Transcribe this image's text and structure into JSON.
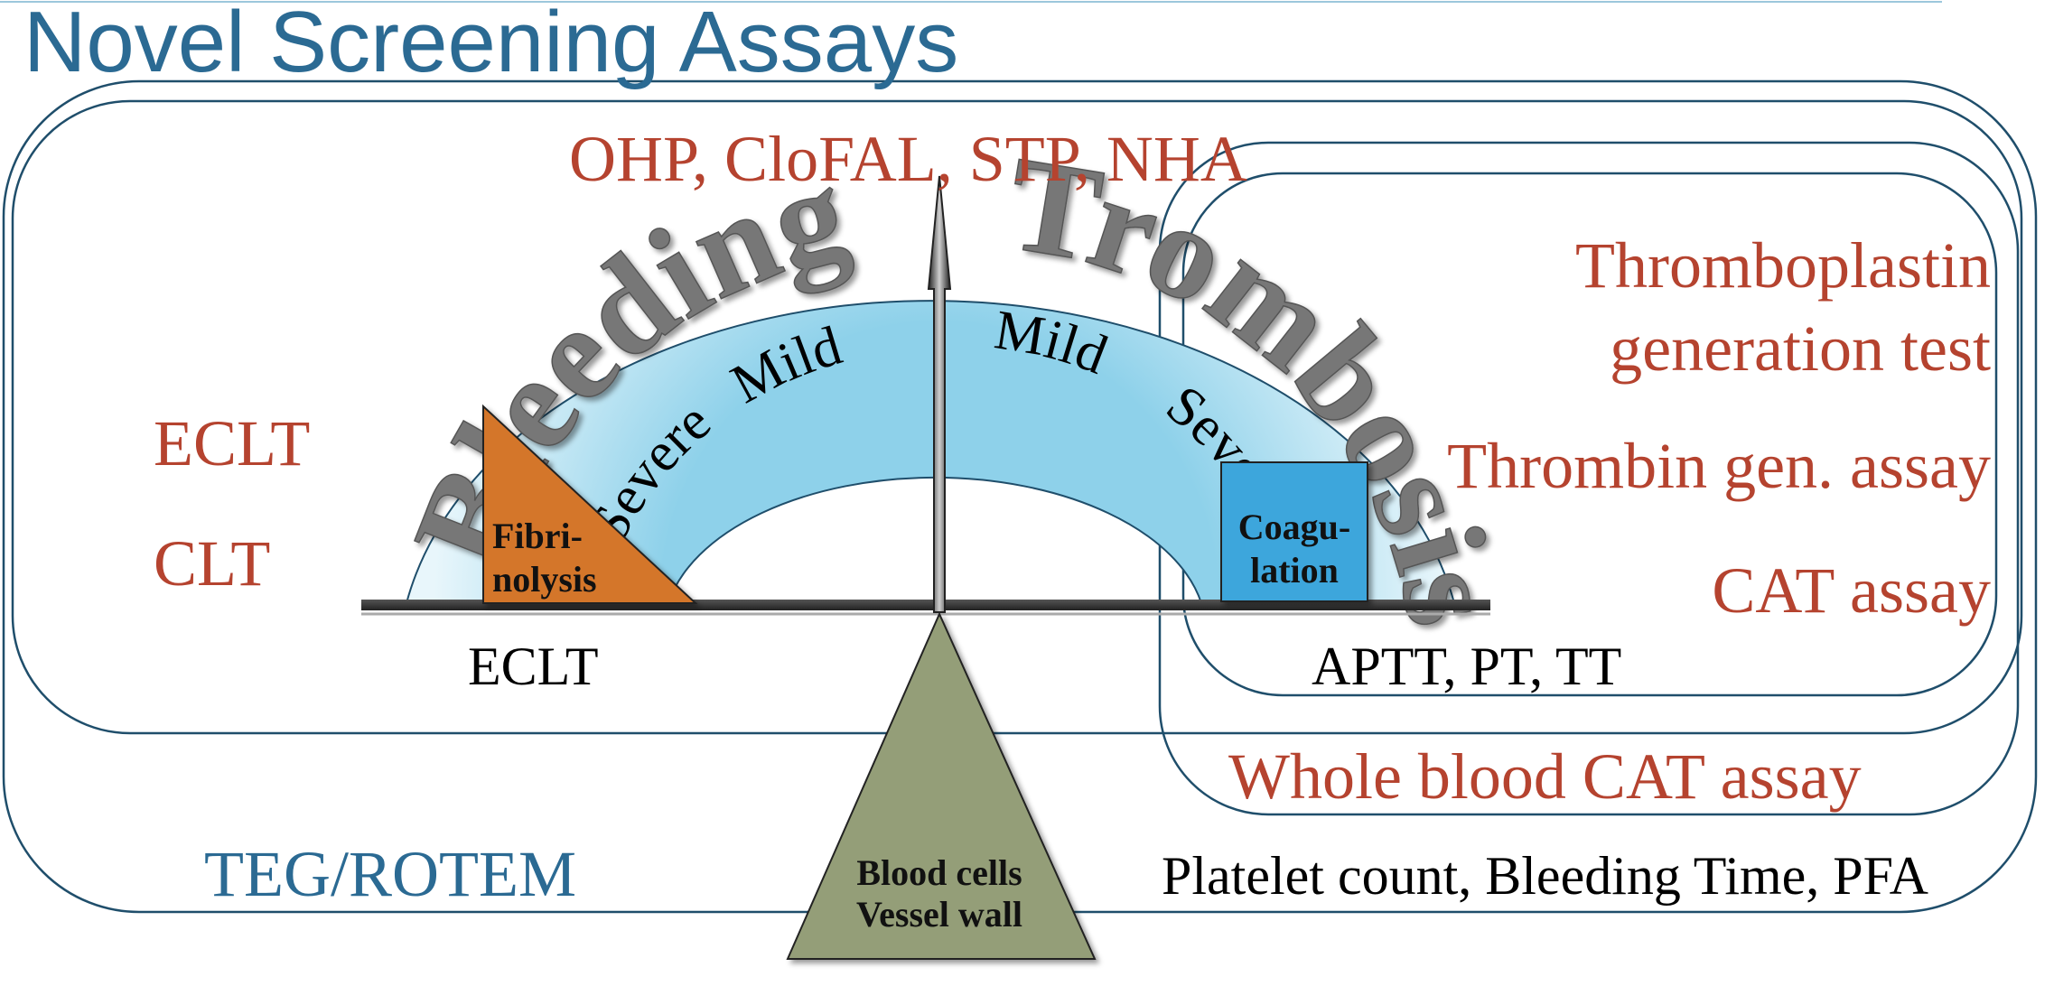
{
  "title": "Novel Screening Assays",
  "gauge": {
    "bleeding_word": "Bleeding",
    "thrombosis_word": "Trombosis",
    "mild_left": "Mild",
    "severe_left": "Severe",
    "mild_right": "Mild",
    "severe_right": "Severe"
  },
  "boxes": {
    "fibrinolysis": "Fibri-|nolysis",
    "coagulation": "Coagu-|lation",
    "fulcrum": "Blood cells|Vessel wall"
  },
  "labels": {
    "top": "OHP, CloFAL, STP, NHA",
    "eclt_left": "ECLT",
    "clt_left": "CLT",
    "eclt_bottom": "ECLT",
    "aptt": "APTT, PT, TT",
    "thromboplastin_1": "Thromboplastin",
    "thromboplastin_2": "generation test",
    "thrombin_gen": "Thrombin gen. assay",
    "cat": "CAT assay",
    "whole_blood": "Whole blood CAT assay",
    "teg": "TEG/ROTEM",
    "platelet": "Platelet count, Bleeding Time, PFA"
  },
  "colors": {
    "title": "#2b6a93",
    "red_text": "#b5432f",
    "outline": "#1f4e6b",
    "arc_fill": "#a9dcef",
    "fibrinolysis": "#d4762c",
    "coagulation": "#3ea6dc",
    "fulcrum": "#949e78"
  }
}
